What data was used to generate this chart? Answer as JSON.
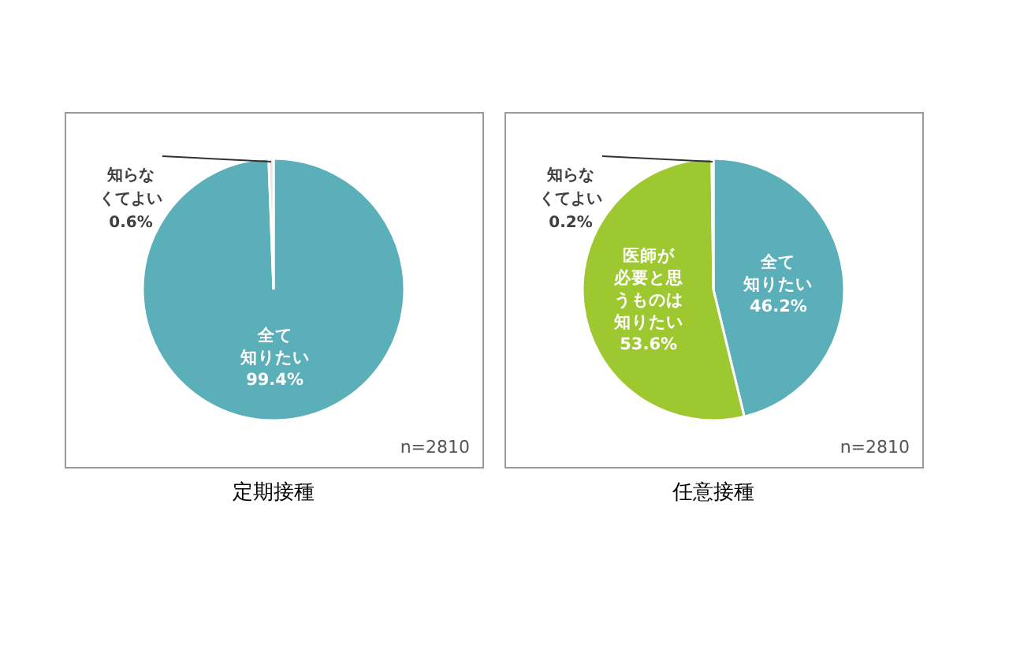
{
  "chart_data": [
    {
      "type": "pie",
      "title": "定期接種",
      "categories": [
        "全て知りたい",
        "知らなくてよい"
      ],
      "values": [
        99.4,
        0.6
      ],
      "value_labels": [
        "99.4%",
        "0.6%"
      ],
      "colors": [
        "#5aafb9",
        "#dfe5e6"
      ],
      "annotations": [
        "n=2810"
      ]
    },
    {
      "type": "pie",
      "title": "任意接種",
      "categories": [
        "全て知りたい",
        "医師が必要と思うものは知りたい",
        "知らなくてよい"
      ],
      "values": [
        46.2,
        53.6,
        0.2
      ],
      "value_labels": [
        "46.2%",
        "53.6%",
        "0.2%"
      ],
      "colors": [
        "#5aafb9",
        "#9ec830",
        "#dfe5e6"
      ],
      "annotations": [
        "n=2810"
      ]
    }
  ]
}
